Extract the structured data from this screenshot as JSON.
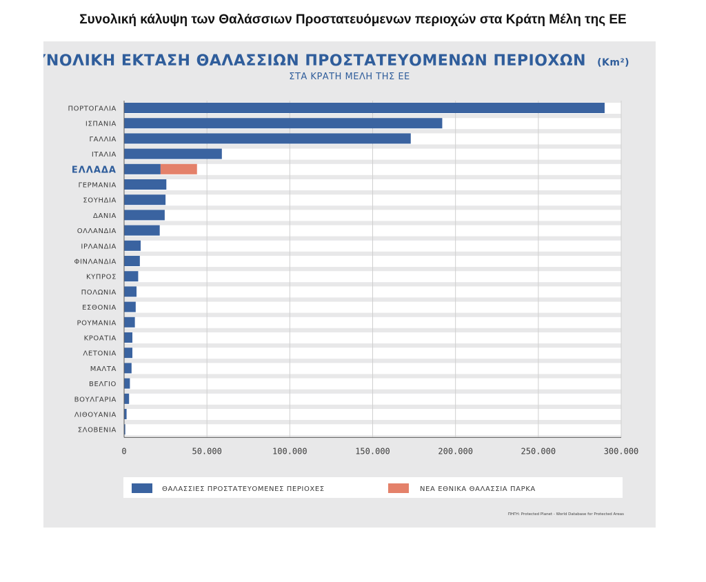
{
  "page": {
    "title": "Συνολική κάλυψη των Θαλάσσιων Προστατευόμενων περιοχών στα Κράτη Μέλη της ΕΕ"
  },
  "chart_data": {
    "type": "bar",
    "orientation": "horizontal",
    "stacked": true,
    "title": "ΣΥΝΟΛΙΚΗ ΕΚΤΑΣΗ ΘΑΛΑΣΣΙΩΝ ΠΡΟΣΤΑΤΕΥΟΜΕΝΩΝ ΠΕΡΙΟΧΩΝ",
    "title_unit": "(Km²)",
    "subtitle": "ΣΤΑ ΚΡΑΤΗ ΜΕΛΗ ΤΗΣ ΕΕ",
    "xlabel": "",
    "ylabel": "",
    "xlim": [
      0,
      300000
    ],
    "x_ticks": [
      0,
      50000,
      100000,
      150000,
      200000,
      250000,
      300000
    ],
    "x_tick_labels": [
      "0",
      "50.000",
      "100.000",
      "150.000",
      "200.000",
      "250.000",
      "300.000"
    ],
    "grid": "vertical",
    "legend_position": "bottom",
    "highlight_category": "ΕΛΛΑΔΑ",
    "categories": [
      "ΠΟΡΤΟΓΑΛΙΑ",
      "ΙΣΠΑΝΙΑ",
      "ΓΑΛΛΙΑ",
      "ΙΤΑΛΙΑ",
      "ΕΛΛΑΔΑ",
      "ΓΕΡΜΑΝΙΑ",
      "ΣΟΥΗΔΙΑ",
      "ΔΑΝΙΑ",
      "ΟΛΛΑΝΔΙΑ",
      "ΙΡΛΑΝΔΙΑ",
      "ΦΙΝΛΑΝΔΙΑ",
      "ΚΥΠΡΟΣ",
      "ΠΟΛΩΝΙΑ",
      "ΕΣΘΟΝΙΑ",
      "ΡΟΥΜΑΝΙΑ",
      "ΚΡΟΑΤΙΑ",
      "ΛΕΤΟΝΙΑ",
      "ΜΑΛΤΑ",
      "ΒΕΛΓΙΟ",
      "ΒΟΥΛΓΑΡΙΑ",
      "ΛΙΘΟΥΑΝΙΑ",
      "ΣΛΟΒΕΝΙΑ"
    ],
    "series": [
      {
        "name": "ΘΑΛΑΣΣΙΕΣ ΠΡΟΣΤΑΤΕΥΟΜΕΝΕΣ ΠΕΡΙΟΧΕΣ",
        "color": "#3a63a0",
        "values": [
          290000,
          192000,
          173000,
          59000,
          22000,
          25500,
          25000,
          24500,
          21500,
          10000,
          9500,
          8500,
          7500,
          7000,
          6500,
          5000,
          5000,
          4500,
          3500,
          3000,
          1500,
          700
        ]
      },
      {
        "name": "ΝΕΑ ΕΘΝΙΚΑ ΘΑΛΑΣΣΙΑ ΠΑΡΚΑ",
        "color": "#e4816a",
        "values": [
          0,
          0,
          0,
          0,
          22000,
          0,
          0,
          0,
          0,
          0,
          0,
          0,
          0,
          0,
          0,
          0,
          0,
          0,
          0,
          0,
          0,
          0
        ]
      }
    ],
    "source_note": "ΠΗΓΗ: Protected Planet - World Database for Protected Areas"
  }
}
